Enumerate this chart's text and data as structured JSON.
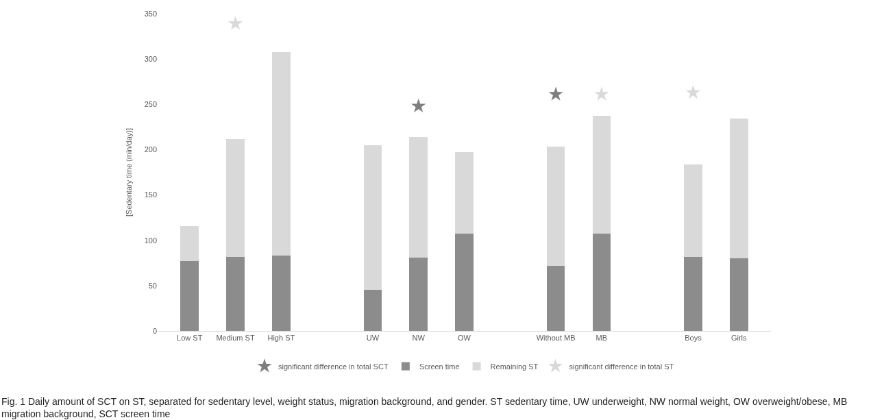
{
  "chart_data": {
    "type": "bar",
    "stacked": true,
    "categories": [
      "Low ST",
      "Medium ST",
      "High ST",
      null,
      "UW",
      "NW",
      "OW",
      null,
      "Without MB",
      "MB",
      null,
      "Boys",
      "Girls"
    ],
    "series": [
      {
        "name": "significant difference in total SCT",
        "type": "scatter",
        "marker": "star",
        "color": "#7f7f7f",
        "values": [
          null,
          null,
          null,
          null,
          null,
          248,
          null,
          null,
          261,
          null,
          null,
          null,
          null
        ]
      },
      {
        "name": "Screen time",
        "color": "#8c8c8c",
        "values": [
          77,
          82,
          83,
          null,
          45,
          81,
          107,
          null,
          72,
          107,
          null,
          82,
          80
        ]
      },
      {
        "name": "Remaining ST",
        "color": "#d9d9d9",
        "values": [
          39,
          130,
          225,
          null,
          160,
          133,
          90,
          null,
          131,
          130,
          null,
          102,
          154
        ]
      },
      {
        "name": "significant difference in total ST",
        "type": "scatter",
        "marker": "star",
        "color": "#d9d9d9",
        "values": [
          null,
          339,
          null,
          null,
          null,
          null,
          null,
          null,
          null,
          261,
          null,
          263,
          null
        ]
      }
    ],
    "ylabel": "[Sedentary time (min/day)]",
    "ylim": [
      0,
      350
    ],
    "yticks": [
      0,
      50,
      100,
      150,
      200,
      250,
      300,
      350
    ],
    "legend": "bottom",
    "annotations": [
      "Fig. 1 Daily amount of SCT on ST, separated for sedentary level, weight status, migration background, and gender. ST sedentary time, UW underweight, NW normal weight, OW overweight/obese, MB migration background, SCT screen time"
    ]
  }
}
